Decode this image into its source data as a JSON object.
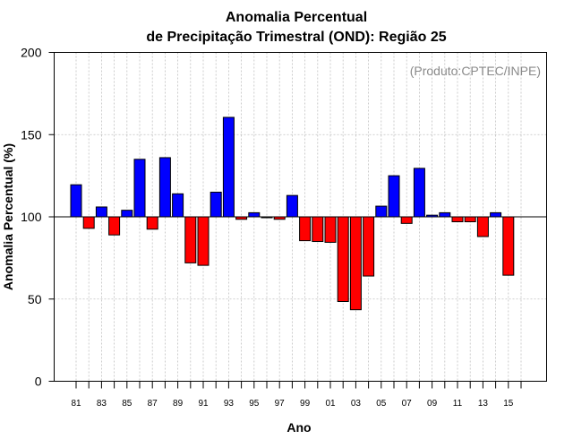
{
  "chart_data": {
    "type": "bar",
    "title_line1": "Anomalia Percentual",
    "title_line2": "de Precipitação Trimestral (OND): Região 25",
    "credit": "(Produto:CPTEC/INPE)",
    "xlabel": "Ano",
    "ylabel": "Anomalia Percentual (%)",
    "ylim": [
      0,
      200
    ],
    "yticks": [
      0,
      50,
      100,
      150,
      200
    ],
    "baseline": 100,
    "grid": true,
    "colors": {
      "above": "#0000ff",
      "below": "#ff0000",
      "edge": "#000000",
      "grid": "#c0c0c0"
    },
    "categories": [
      "81",
      "82",
      "83",
      "84",
      "85",
      "86",
      "87",
      "88",
      "89",
      "90",
      "91",
      "92",
      "93",
      "94",
      "95",
      "96",
      "97",
      "98",
      "99",
      "00",
      "01",
      "02",
      "03",
      "04",
      "05",
      "06",
      "07",
      "08",
      "09",
      "10",
      "11",
      "12",
      "13",
      "14",
      "15",
      "16"
    ],
    "xtick_labels": [
      "81",
      "83",
      "85",
      "87",
      "89",
      "91",
      "93",
      "95",
      "97",
      "99",
      "01",
      "03",
      "05",
      "07",
      "09",
      "11",
      "13",
      "15"
    ],
    "values": [
      119.5,
      93,
      106,
      89,
      104,
      135,
      92.5,
      136,
      114,
      72,
      70.5,
      115,
      160.5,
      98.5,
      102.5,
      100,
      98.5,
      113,
      85.5,
      85,
      84.5,
      48.5,
      43.5,
      64,
      106.5,
      125,
      96,
      129.5,
      101,
      102.5,
      97,
      97,
      88,
      102.5,
      64.5,
      null
    ]
  }
}
